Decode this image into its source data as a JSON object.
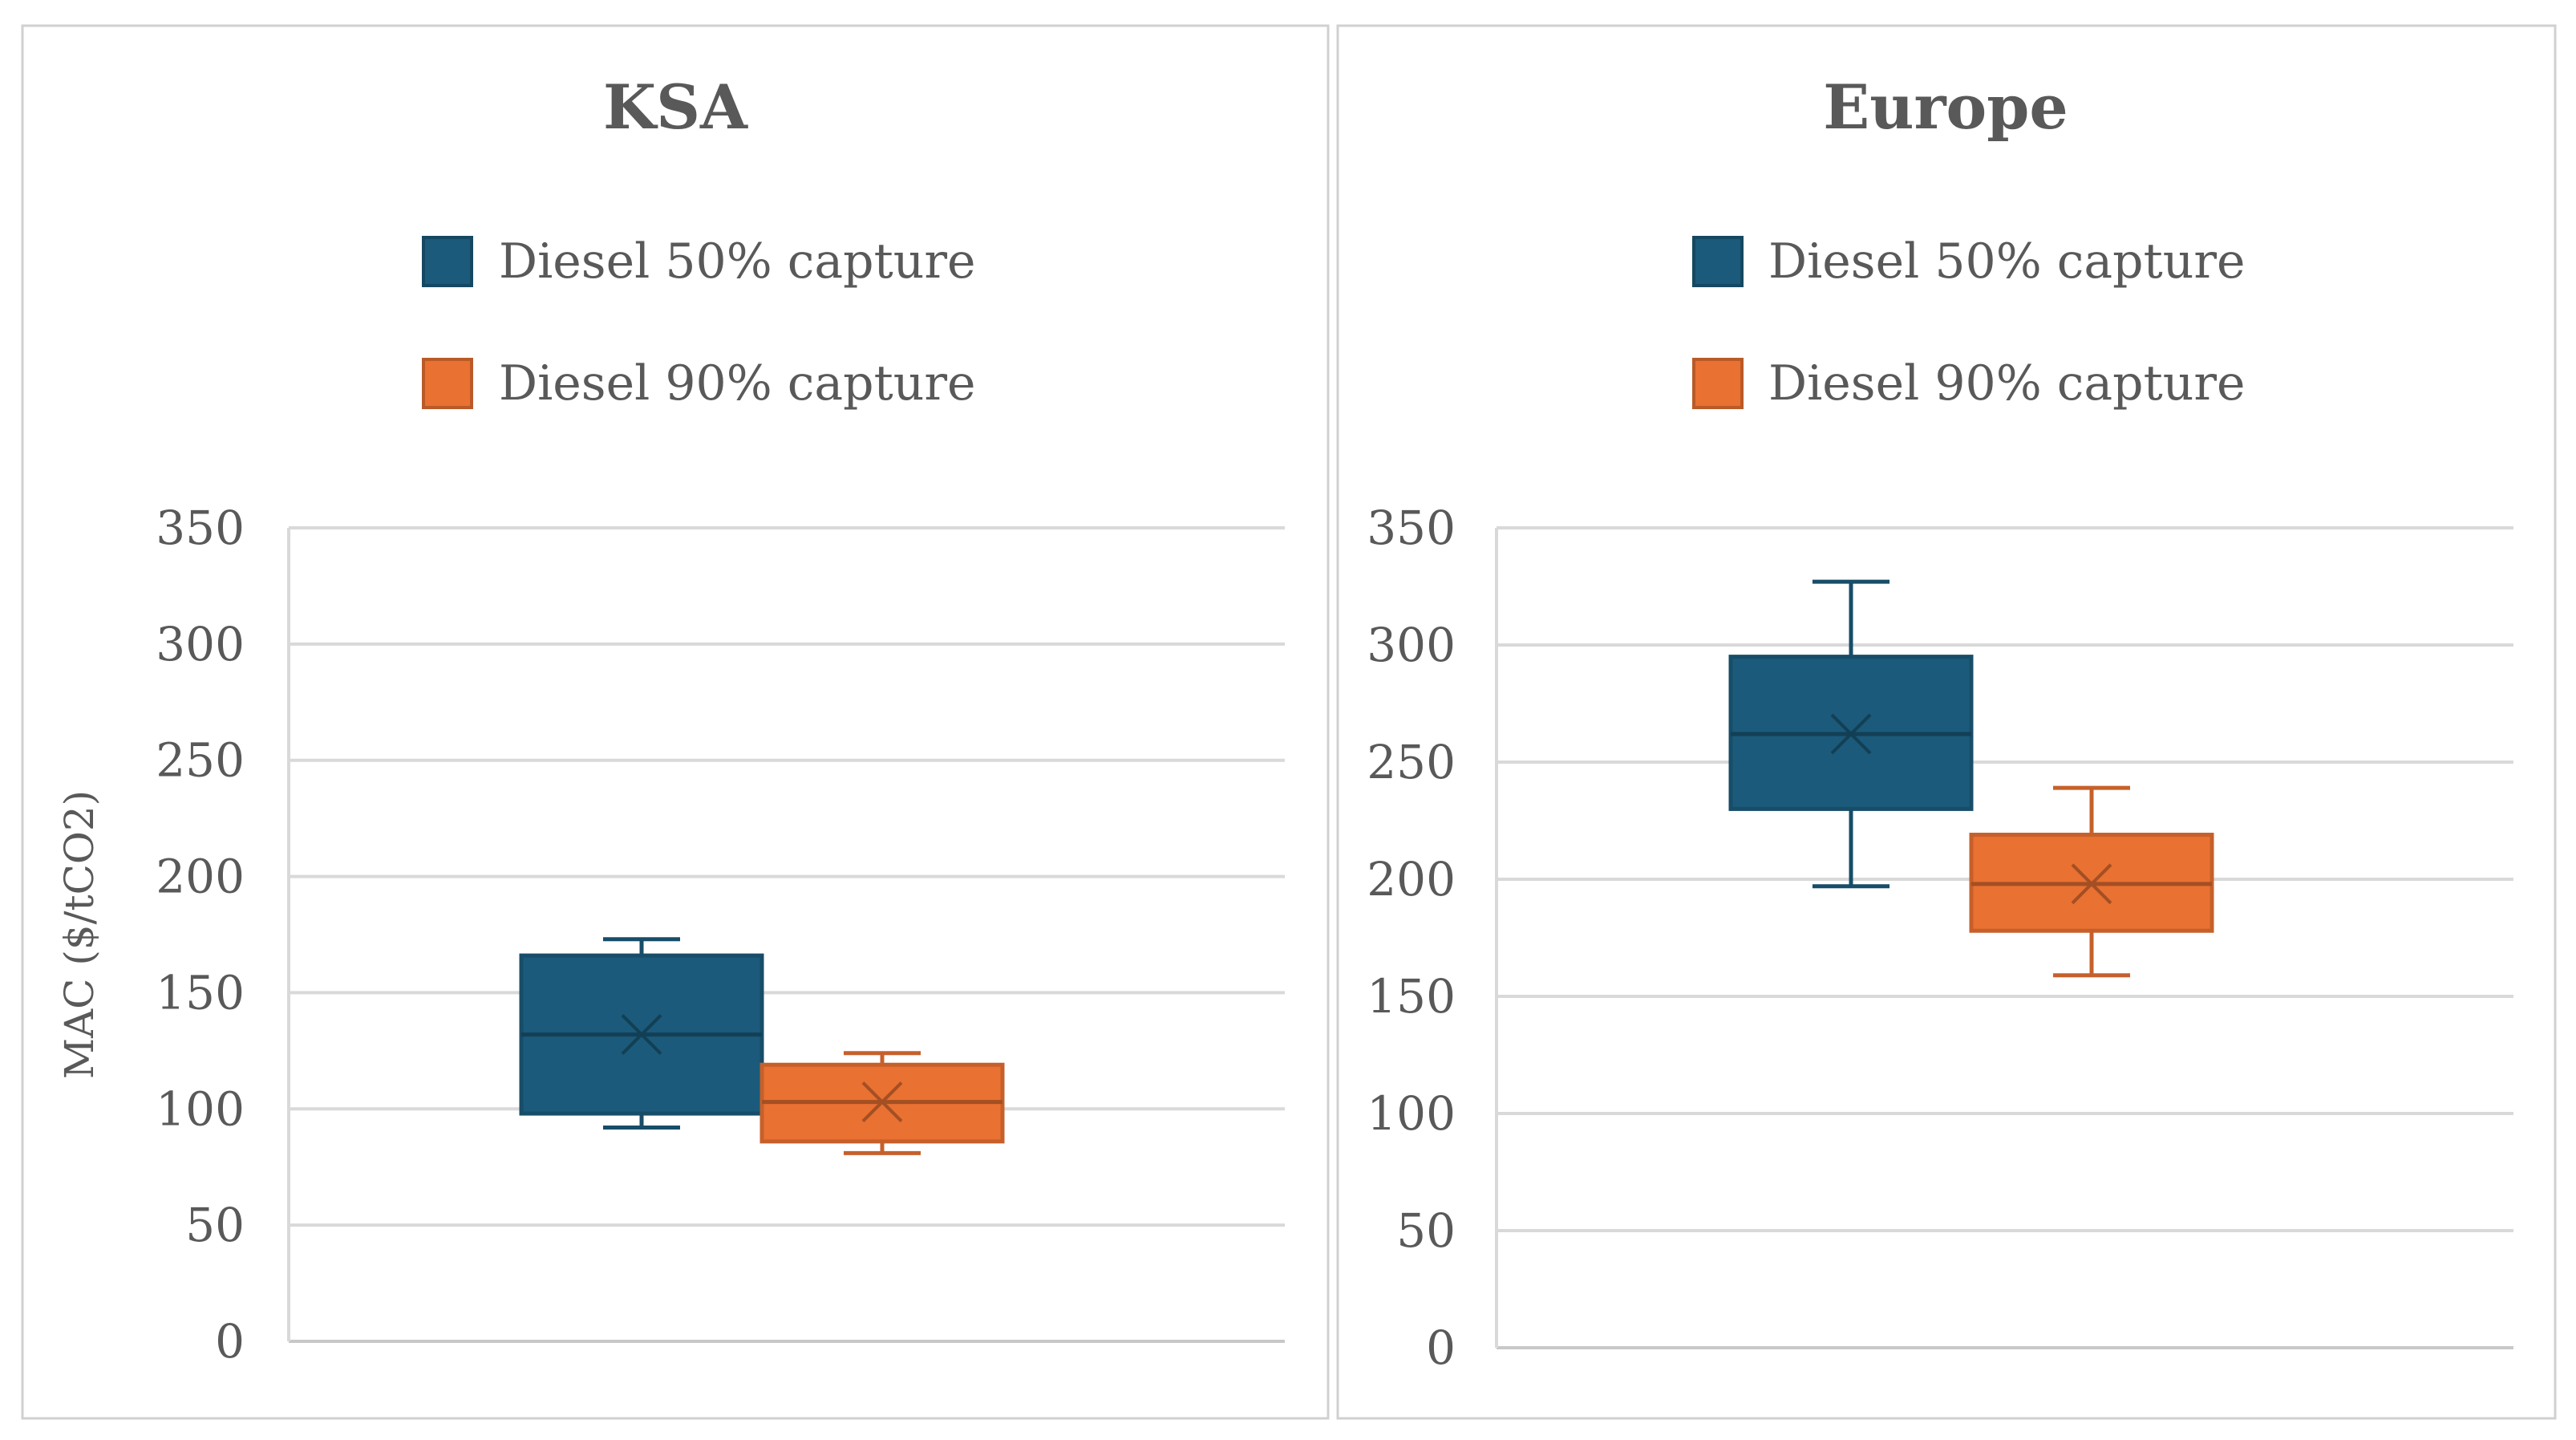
{
  "chart_data": [
    {
      "type": "boxplot",
      "title": "KSA",
      "ylabel": "MAC ($/tCO2)",
      "xlabel": "",
      "ylim": [
        0,
        350
      ],
      "yticks": [
        "0",
        "50",
        "100",
        "150",
        "200",
        "250",
        "300",
        "350"
      ],
      "legend": [
        "Diesel 50% capture",
        "Diesel 90% capture"
      ],
      "series": [
        {
          "name": "Diesel 50% capture",
          "color": "#1b5a7a",
          "min": 92,
          "q1": 98,
          "median": 132,
          "mean": 132,
          "q3": 166,
          "max": 173
        },
        {
          "name": "Diesel 90% capture",
          "color": "#e97132",
          "min": 81,
          "q1": 86,
          "median": 103,
          "mean": 103,
          "q3": 119,
          "max": 124
        }
      ]
    },
    {
      "type": "boxplot",
      "title": "Europe",
      "ylabel": "",
      "xlabel": "",
      "ylim": [
        0,
        350
      ],
      "yticks": [
        "0",
        "50",
        "100",
        "150",
        "200",
        "250",
        "300",
        "350"
      ],
      "legend": [
        "Diesel 50% capture",
        "Diesel 90% capture"
      ],
      "series": [
        {
          "name": "Diesel 50% capture",
          "color": "#1b5a7a",
          "min": 197,
          "q1": 230,
          "median": 262,
          "mean": 262,
          "q3": 295,
          "max": 327
        },
        {
          "name": "Diesel 90% capture",
          "color": "#e97132",
          "min": 159,
          "q1": 178,
          "median": 198,
          "mean": 198,
          "q3": 219,
          "max": 239
        }
      ]
    }
  ]
}
